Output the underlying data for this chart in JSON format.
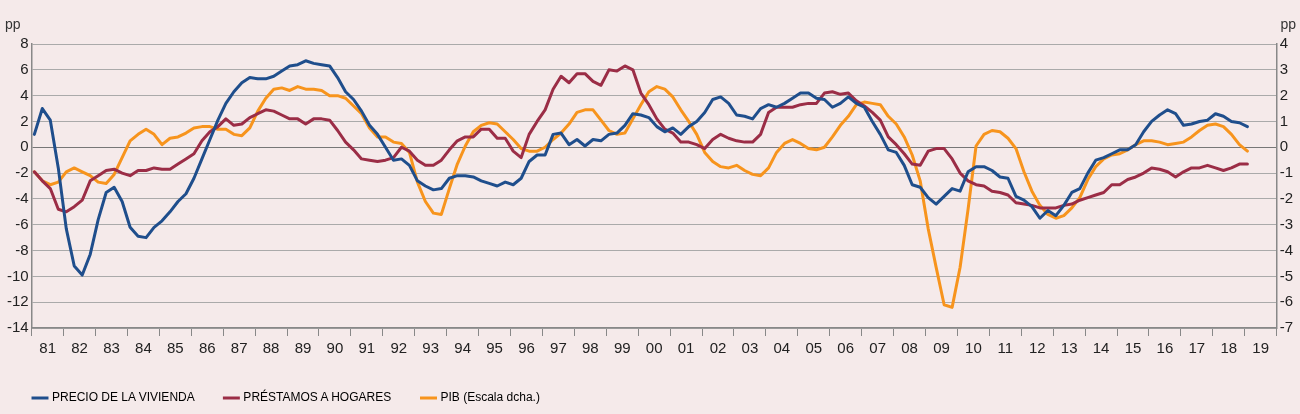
{
  "chart_data": {
    "type": "line",
    "ylabel": "pp",
    "y2label": "pp",
    "xlim": [
      "1981",
      "2020"
    ],
    "ylim": [
      -14,
      8
    ],
    "y2lim": [
      -7,
      4
    ],
    "yticks": [
      -14,
      -12,
      -10,
      -8,
      -6,
      -4,
      -2,
      0,
      2,
      4,
      6,
      8
    ],
    "y2ticks": [
      -7,
      -6,
      -5,
      -4,
      -3,
      -2,
      -1,
      0,
      1,
      2,
      3,
      4
    ],
    "xticks": [
      {
        "value": "1981",
        "label": null
      },
      {
        "value": "1981-07",
        "label": "81"
      },
      {
        "value": "1982",
        "label": null
      },
      {
        "value": "1982-07",
        "label": "82"
      },
      {
        "value": "1983",
        "label": null
      },
      {
        "value": "1983-07",
        "label": "83"
      },
      {
        "value": "1984",
        "label": null
      },
      {
        "value": "1984-07",
        "label": "84"
      },
      {
        "value": "1985",
        "label": null
      },
      {
        "value": "1985-07",
        "label": "85"
      },
      {
        "value": "1986",
        "label": null
      },
      {
        "value": "1986-07",
        "label": "86"
      },
      {
        "value": "1987",
        "label": null
      },
      {
        "value": "1987-07",
        "label": "87"
      },
      {
        "value": "1988",
        "label": null
      },
      {
        "value": "1988-07",
        "label": "88"
      },
      {
        "value": "1989",
        "label": null
      },
      {
        "value": "1989-07",
        "label": "89"
      },
      {
        "value": "1990",
        "label": null
      },
      {
        "value": "1990-07",
        "label": "90"
      },
      {
        "value": "1991",
        "label": null
      },
      {
        "value": "1991-07",
        "label": "91"
      },
      {
        "value": "1992",
        "label": null
      },
      {
        "value": "1992-07",
        "label": "92"
      },
      {
        "value": "1993",
        "label": null
      },
      {
        "value": "1993-07",
        "label": "93"
      },
      {
        "value": "1994",
        "label": null
      },
      {
        "value": "1994-07",
        "label": "94"
      },
      {
        "value": "1995",
        "label": null
      },
      {
        "value": "1995-07",
        "label": "95"
      },
      {
        "value": "1996",
        "label": null
      },
      {
        "value": "1996-07",
        "label": "96"
      },
      {
        "value": "1997",
        "label": null
      },
      {
        "value": "1997-07",
        "label": "97"
      },
      {
        "value": "1998",
        "label": null
      },
      {
        "value": "1998-07",
        "label": "98"
      },
      {
        "value": "1999",
        "label": null
      },
      {
        "value": "1999-07",
        "label": "99"
      },
      {
        "value": "2000",
        "label": null
      },
      {
        "value": "2000-07",
        "label": "00"
      },
      {
        "value": "2001",
        "label": null
      },
      {
        "value": "2001-07",
        "label": "01"
      },
      {
        "value": "2002",
        "label": null
      },
      {
        "value": "2002-07",
        "label": "02"
      },
      {
        "value": "2003",
        "label": null
      },
      {
        "value": "2003-07",
        "label": "03"
      },
      {
        "value": "2004",
        "label": null
      },
      {
        "value": "2004-07",
        "label": "04"
      },
      {
        "value": "2005",
        "label": null
      },
      {
        "value": "2005-07",
        "label": "05"
      },
      {
        "value": "2006",
        "label": null
      },
      {
        "value": "2006-07",
        "label": "06"
      },
      {
        "value": "2007",
        "label": null
      },
      {
        "value": "2007-07",
        "label": "07"
      },
      {
        "value": "2008",
        "label": null
      },
      {
        "value": "2008-07",
        "label": "08"
      },
      {
        "value": "2009",
        "label": null
      },
      {
        "value": "2009-07",
        "label": "09"
      },
      {
        "value": "2010",
        "label": null
      },
      {
        "value": "2010-07",
        "label": "10"
      },
      {
        "value": "2011",
        "label": null
      },
      {
        "value": "2011-07",
        "label": "11"
      },
      {
        "value": "2012",
        "label": null
      },
      {
        "value": "2012-07",
        "label": "12"
      },
      {
        "value": "2013",
        "label": null
      },
      {
        "value": "2013-07",
        "label": "13"
      },
      {
        "value": "2014",
        "label": null
      },
      {
        "value": "2014-07",
        "label": "14"
      },
      {
        "value": "2015",
        "label": null
      },
      {
        "value": "2015-07",
        "label": "15"
      },
      {
        "value": "2016",
        "label": null
      },
      {
        "value": "2016-07",
        "label": "16"
      },
      {
        "value": "2017",
        "label": null
      },
      {
        "value": "2017-07",
        "label": "17"
      },
      {
        "value": "2018",
        "label": null
      },
      {
        "value": "2018-07",
        "label": "18"
      },
      {
        "value": "2019",
        "label": null
      },
      {
        "value": "2019-07",
        "label": "19"
      },
      {
        "value": "2020",
        "label": null
      }
    ],
    "x": [
      "1981-02",
      "1981-05",
      "1981-08",
      "1981-11",
      "1982-02",
      "1982-05",
      "1982-08",
      "1982-11",
      "1983-02",
      "1983-05",
      "1983-08",
      "1983-11",
      "1984-02",
      "1984-05",
      "1984-08",
      "1984-11",
      "1985-02",
      "1985-05",
      "1985-08",
      "1985-11",
      "1986-02",
      "1986-05",
      "1986-08",
      "1986-11",
      "1987-02",
      "1987-05",
      "1987-08",
      "1987-11",
      "1988-02",
      "1988-05",
      "1988-08",
      "1988-11",
      "1989-02",
      "1989-05",
      "1989-08",
      "1989-11",
      "1990-02",
      "1990-05",
      "1990-08",
      "1990-11",
      "1991-02",
      "1991-05",
      "1991-08",
      "1991-11",
      "1992-02",
      "1992-05",
      "1992-08",
      "1992-11",
      "1993-02",
      "1993-05",
      "1993-08",
      "1993-11",
      "1994-02",
      "1994-05",
      "1994-08",
      "1994-11",
      "1995-02",
      "1995-05",
      "1995-08",
      "1995-11",
      "1996-02",
      "1996-05",
      "1996-08",
      "1996-11",
      "1997-02",
      "1997-05",
      "1997-08",
      "1997-11",
      "1998-02",
      "1998-05",
      "1998-08",
      "1998-11",
      "1999-02",
      "1999-05",
      "1999-08",
      "1999-11",
      "2000-02",
      "2000-05",
      "2000-08",
      "2000-11",
      "2001-02",
      "2001-05",
      "2001-08",
      "2001-11",
      "2002-02",
      "2002-05",
      "2002-08",
      "2002-11",
      "2003-02",
      "2003-05",
      "2003-08",
      "2003-11",
      "2004-02",
      "2004-05",
      "2004-08",
      "2004-11",
      "2005-02",
      "2005-05",
      "2005-08",
      "2005-11",
      "2006-02",
      "2006-05",
      "2006-08",
      "2006-11",
      "2007-02",
      "2007-05",
      "2007-08",
      "2007-11",
      "2008-02",
      "2008-05",
      "2008-08",
      "2008-11",
      "2009-02",
      "2009-05",
      "2009-08",
      "2009-11",
      "2010-02",
      "2010-05",
      "2010-08",
      "2010-11",
      "2011-02",
      "2011-05",
      "2011-08",
      "2011-11",
      "2012-02",
      "2012-05",
      "2012-08",
      "2012-11",
      "2013-02",
      "2013-05",
      "2013-08",
      "2013-11",
      "2014-02",
      "2014-05",
      "2014-08",
      "2014-11",
      "2015-02",
      "2015-05",
      "2015-08",
      "2015-11",
      "2016-02",
      "2016-05",
      "2016-08",
      "2016-11",
      "2017-02",
      "2017-05",
      "2017-08",
      "2017-11",
      "2018-02",
      "2018-05",
      "2018-08",
      "2018-11",
      "2019-02"
    ],
    "grid": "y",
    "legend": "bottom",
    "marker": "none",
    "line_style": "solid",
    "series": [
      {
        "name": "PRECIO DE LA VIVIENDA",
        "color": "#1f4e8c",
        "values": [
          1.0,
          3.0,
          2.1,
          -1.6,
          -6.3,
          -9.2,
          -9.9,
          -8.3,
          -5.6,
          -3.5,
          -3.1,
          -4.2,
          -6.2,
          -6.9,
          -7.0,
          -6.2,
          -5.7,
          -5.0,
          -4.2,
          -3.6,
          -2.4,
          -0.9,
          0.6,
          2.1,
          3.4,
          4.3,
          5.0,
          5.4,
          5.3,
          5.3,
          5.5,
          5.9,
          6.3,
          6.4,
          6.7,
          6.5,
          6.4,
          6.3,
          5.4,
          4.3,
          3.7,
          2.8,
          1.7,
          1.0,
          0.0,
          -1.0,
          -0.9,
          -1.4,
          -2.6,
          -3.0,
          -3.3,
          -3.2,
          -2.4,
          -2.2,
          -2.2,
          -2.3,
          -2.6,
          -2.8,
          -3.0,
          -2.7,
          -2.9,
          -2.4,
          -1.1,
          -0.6,
          -0.6,
          1.0,
          1.1,
          0.2,
          0.6,
          0.1,
          0.6,
          0.5,
          1.0,
          1.1,
          1.7,
          2.6,
          2.5,
          2.3,
          1.6,
          1.2,
          1.5,
          1.0,
          1.6,
          2.0,
          2.7,
          3.7,
          3.9,
          3.4,
          2.5,
          2.4,
          2.2,
          3.0,
          3.3,
          3.1,
          3.4,
          3.8,
          4.2,
          4.2,
          3.8,
          3.7,
          3.1,
          3.4,
          3.9,
          3.4,
          3.1,
          2.0,
          1.0,
          -0.2,
          -0.4,
          -1.4,
          -2.9,
          -3.1,
          -3.9,
          -4.4,
          -3.8,
          -3.2,
          -3.4,
          -1.9,
          -1.5,
          -1.5,
          -1.8,
          -2.3,
          -2.4,
          -3.8,
          -4.1,
          -4.6,
          -5.5,
          -4.9,
          -5.3,
          -4.5,
          -3.5,
          -3.2,
          -2.0,
          -1.0,
          -0.8,
          -0.5,
          -0.2,
          -0.2,
          0.2,
          1.2,
          2.0,
          2.5,
          2.9,
          2.6,
          1.7,
          1.8,
          2.0,
          2.1,
          2.6,
          2.4,
          2.0,
          1.9,
          1.6
        ]
      },
      {
        "name": "PRÉSTAMOS A HOGARES",
        "color": "#9b2d46",
        "values": [
          -1.9,
          -2.6,
          -3.2,
          -4.8,
          -5.0,
          -4.6,
          -4.1,
          -2.6,
          -2.2,
          -1.8,
          -1.7,
          -2.0,
          -2.2,
          -1.8,
          -1.8,
          -1.6,
          -1.7,
          -1.7,
          -1.3,
          -0.9,
          -0.5,
          0.5,
          1.2,
          1.6,
          2.2,
          1.7,
          1.8,
          2.3,
          2.6,
          2.9,
          2.8,
          2.5,
          2.2,
          2.2,
          1.8,
          2.2,
          2.2,
          2.1,
          1.3,
          0.4,
          -0.2,
          -0.9,
          -1.0,
          -1.1,
          -1.0,
          -0.8,
          0.0,
          -0.3,
          -1.0,
          -1.4,
          -1.4,
          -1.0,
          -0.2,
          0.5,
          0.8,
          0.8,
          1.4,
          1.4,
          0.7,
          0.7,
          -0.3,
          -0.8,
          1.0,
          2.0,
          2.9,
          4.5,
          5.5,
          5.0,
          5.7,
          5.7,
          5.1,
          4.8,
          6.0,
          5.9,
          6.3,
          6.0,
          4.2,
          3.3,
          2.2,
          1.4,
          1.1,
          0.4,
          0.4,
          0.2,
          -0.1,
          0.6,
          1.0,
          0.7,
          0.5,
          0.4,
          0.4,
          1.0,
          2.7,
          3.1,
          3.1,
          3.1,
          3.3,
          3.4,
          3.4,
          4.2,
          4.3,
          4.1,
          4.2,
          3.6,
          3.2,
          2.7,
          2.1,
          0.8,
          0.2,
          -0.5,
          -1.3,
          -1.4,
          -0.3,
          -0.1,
          -0.1,
          -0.9,
          -2.0,
          -2.6,
          -2.9,
          -3.0,
          -3.4,
          -3.5,
          -3.7,
          -4.3,
          -4.4,
          -4.5,
          -4.7,
          -4.7,
          -4.7,
          -4.5,
          -4.4,
          -4.1,
          -3.9,
          -3.7,
          -3.5,
          -2.9,
          -2.9,
          -2.5,
          -2.3,
          -2.0,
          -1.6,
          -1.7,
          -1.9,
          -2.3,
          -1.9,
          -1.6,
          -1.6,
          -1.4,
          -1.6,
          -1.8,
          -1.6,
          -1.3,
          -1.3
        ]
      },
      {
        "name": "PIB (Escala dcha.)",
        "color": "#f7941d",
        "axis": "y2",
        "values": [
          -0.95,
          -1.3,
          -1.45,
          -1.35,
          -0.95,
          -0.8,
          -0.95,
          -1.1,
          -1.35,
          -1.4,
          -1.05,
          -0.4,
          0.25,
          0.5,
          0.7,
          0.5,
          0.1,
          0.35,
          0.4,
          0.55,
          0.75,
          0.8,
          0.8,
          0.7,
          0.7,
          0.5,
          0.45,
          0.75,
          1.4,
          1.9,
          2.25,
          2.3,
          2.2,
          2.35,
          2.25,
          2.25,
          2.2,
          2.0,
          2.0,
          1.9,
          1.6,
          1.3,
          0.75,
          0.4,
          0.4,
          0.2,
          0.15,
          -0.2,
          -1.35,
          -2.1,
          -2.55,
          -2.6,
          -1.6,
          -0.65,
          0.05,
          0.6,
          0.85,
          0.95,
          0.9,
          0.6,
          0.3,
          -0.05,
          -0.15,
          -0.15,
          0.0,
          0.3,
          0.55,
          0.9,
          1.35,
          1.45,
          1.45,
          1.05,
          0.65,
          0.5,
          0.55,
          1.1,
          1.65,
          2.15,
          2.35,
          2.25,
          1.95,
          1.45,
          1.0,
          0.5,
          -0.2,
          -0.55,
          -0.75,
          -0.8,
          -0.7,
          -0.9,
          -1.05,
          -1.1,
          -0.8,
          -0.2,
          0.15,
          0.3,
          0.15,
          -0.05,
          -0.1,
          0.0,
          0.4,
          0.85,
          1.2,
          1.65,
          1.75,
          1.7,
          1.65,
          1.2,
          0.9,
          0.4,
          -0.3,
          -1.3,
          -3.15,
          -4.65,
          -6.1,
          -6.2,
          -4.65,
          -2.4,
          0.05,
          0.5,
          0.65,
          0.6,
          0.35,
          -0.05,
          -0.95,
          -1.7,
          -2.25,
          -2.6,
          -2.75,
          -2.65,
          -2.35,
          -1.95,
          -1.25,
          -0.75,
          -0.45,
          -0.3,
          -0.25,
          -0.1,
          0.1,
          0.25,
          0.25,
          0.2,
          0.1,
          0.15,
          0.2,
          0.4,
          0.65,
          0.85,
          0.9,
          0.8,
          0.5,
          0.1,
          -0.15
        ]
      }
    ]
  }
}
